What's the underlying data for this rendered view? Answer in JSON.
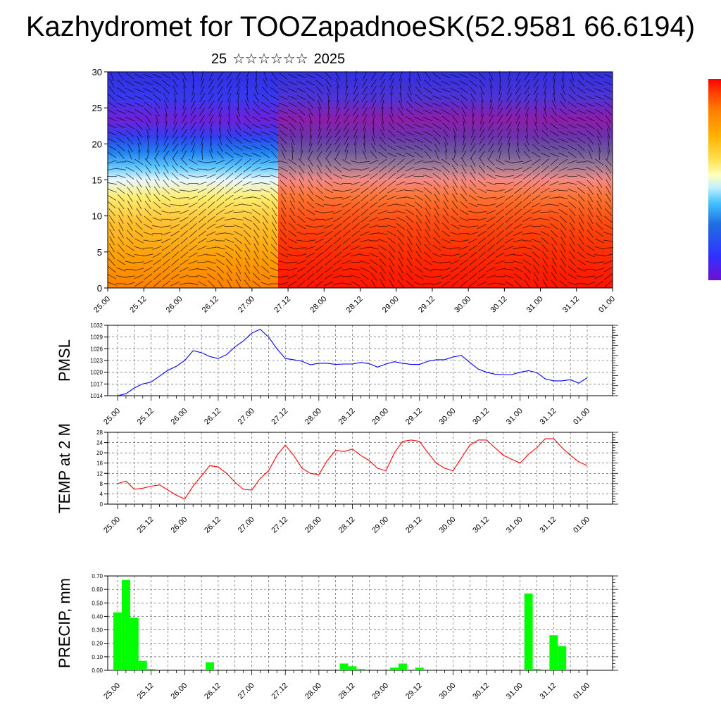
{
  "title": "Kazhydromet for TOOZapadnoeSK(52.9581 66.6194)",
  "subtitle": {
    "day": "25",
    "month": "☆☆☆☆☆☆",
    "year": "2025"
  },
  "colors": {
    "pmsl_line": "#0000ff",
    "temp_line": "#ff0000",
    "precip_bar": "#00ff00",
    "colorbar": [
      "#ff0000",
      "#ff4000",
      "#ff8000",
      "#ffb000",
      "#ffe050",
      "#ffffc0",
      "#c0f0ff",
      "#40c0ff",
      "#2070e0",
      "#3030ff",
      "#7010d0"
    ]
  },
  "chart_data": [
    {
      "type": "heatmap",
      "name": "meteogram-crosssection",
      "ylim": [
        0,
        30
      ],
      "y_ticks": [
        "0",
        "5",
        "10",
        "15",
        "20",
        "25",
        "30"
      ],
      "x_ticks": [
        "25.00",
        "25.12",
        "26.00",
        "26.12",
        "27.00",
        "27.12",
        "28.00",
        "28.12",
        "29.00",
        "29.12",
        "30.00",
        "30.12",
        "31.00",
        "31.12",
        "01.00"
      ],
      "grid": false
    },
    {
      "type": "line",
      "name": "pmsl",
      "ylabel": "PMSL",
      "ylim": [
        1014,
        1032
      ],
      "y_ticks": [
        "1014",
        "1017",
        "1020",
        "1023",
        "1026",
        "1029",
        "1032"
      ],
      "x_ticks": [
        "25.00",
        "25.12",
        "26.00",
        "26.12",
        "27.00",
        "27.12",
        "28.00",
        "28.12",
        "29.00",
        "29.12",
        "30.00",
        "30.12",
        "31.00",
        "31.12",
        "01.00"
      ],
      "grid": true,
      "values": [
        1014,
        1014.5,
        1016,
        1017,
        1017.5,
        1019,
        1020.5,
        1021.5,
        1023,
        1025.5,
        1025,
        1024,
        1023.5,
        1024.5,
        1026.5,
        1028,
        1030,
        1031,
        1029,
        1026,
        1023.5,
        1023.2,
        1022.8,
        1021.9,
        1022.3,
        1022.3,
        1022,
        1022.1,
        1022.1,
        1022.5,
        1022.2,
        1021.3,
        1022.1,
        1022.7,
        1022.3,
        1022,
        1022,
        1022.8,
        1023.2,
        1023.2,
        1023.9,
        1024.3,
        1022.5,
        1020.8,
        1020,
        1019.5,
        1019.4,
        1019.4,
        1020,
        1020.4,
        1019.9,
        1018.3,
        1017.8,
        1017.8,
        1018.1,
        1017.2,
        1018.6
      ]
    },
    {
      "type": "line",
      "name": "temp2m",
      "ylabel": "TEMP at 2 M",
      "ylim": [
        0,
        28
      ],
      "y_ticks": [
        "0",
        "4",
        "8",
        "12",
        "16",
        "20",
        "24",
        "28"
      ],
      "x_ticks": [
        "25.00",
        "25.12",
        "26.00",
        "26.12",
        "27.00",
        "27.12",
        "28.00",
        "28.12",
        "29.00",
        "29.12",
        "30.00",
        "30.12",
        "31.00",
        "31.12",
        "01.00"
      ],
      "grid": true,
      "values": [
        8,
        9,
        5.8,
        6.2,
        7,
        7.5,
        5.5,
        3.5,
        2,
        7,
        11,
        15,
        14.5,
        12,
        8.5,
        5.8,
        5.5,
        10,
        13,
        19,
        23,
        19,
        14,
        12,
        11.5,
        17,
        21,
        20.5,
        21.5,
        19,
        17,
        14,
        13,
        20,
        24.5,
        25,
        24.5,
        20,
        16,
        14,
        13,
        18,
        23,
        25,
        25,
        22,
        19,
        17.5,
        16,
        19.5,
        22,
        25.5,
        25.5,
        22,
        19,
        16.5,
        15
      ]
    },
    {
      "type": "bar",
      "name": "precip",
      "ylabel": "PRECIP, mm",
      "ylim": [
        0,
        0.7
      ],
      "y_ticks": [
        "0.00",
        "0.10",
        "0.20",
        "0.30",
        "0.40",
        "0.50",
        "0.60",
        "0.70"
      ],
      "x_ticks": [
        "25.00",
        "25.12",
        "26.00",
        "26.12",
        "27.00",
        "27.12",
        "28.00",
        "28.12",
        "29.00",
        "29.12",
        "30.00",
        "30.12",
        "31.00",
        "31.12",
        "01.00"
      ],
      "grid": true,
      "values": [
        0.43,
        0.67,
        0.39,
        0.07,
        0.01,
        0,
        0,
        0,
        0,
        0,
        0,
        0.06,
        0,
        0,
        0,
        0,
        0,
        0,
        0,
        0,
        0,
        0,
        0,
        0,
        0,
        0,
        0,
        0.05,
        0.03,
        0.01,
        0,
        0,
        0,
        0.02,
        0.05,
        0,
        0.02,
        0,
        0,
        0,
        0,
        0,
        0,
        0,
        0,
        0,
        0,
        0,
        0,
        0.57,
        0.01,
        0,
        0.26,
        0.18,
        0,
        0,
        0
      ]
    }
  ]
}
